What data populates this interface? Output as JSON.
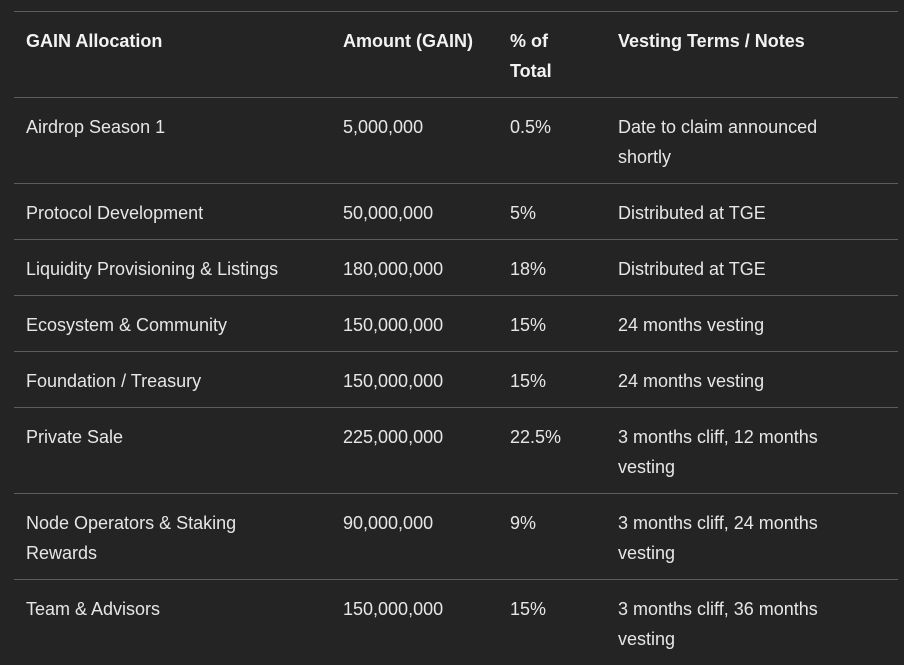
{
  "table": {
    "header": [
      "GAIN Allocation",
      "Amount (GAIN)",
      "% of Total",
      "Vesting Terms / Notes"
    ],
    "rows": [
      [
        "Airdrop Season 1",
        "5,000,000",
        "0.5%",
        "Date to claim announced shortly"
      ],
      [
        "Protocol Development",
        "50,000,000",
        "5%",
        "Distributed at TGE"
      ],
      [
        "Liquidity Provisioning & Listings",
        "180,000,000",
        "18%",
        "Distributed at TGE"
      ],
      [
        "Ecosystem & Community",
        "150,000,000",
        "15%",
        "24 months vesting"
      ],
      [
        "Foundation / Treasury",
        "150,000,000",
        "15%",
        "24 months vesting"
      ],
      [
        "Private Sale",
        "225,000,000",
        "22.5%",
        "3 months cliff, 12 months vesting"
      ],
      [
        "Node Operators & Staking Rewards",
        "90,000,000",
        "9%",
        "3 months cliff, 24 months vesting"
      ],
      [
        "Team & Advisors",
        "150,000,000",
        "15%",
        "3 months cliff, 36 months vesting"
      ]
    ]
  }
}
